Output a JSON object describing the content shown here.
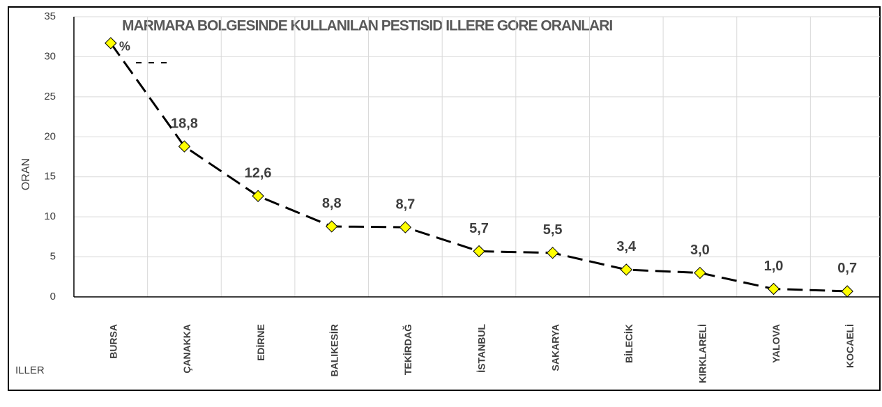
{
  "chart_data": {
    "type": "line",
    "title": "MARMARA BOLGESINDE KULLANILAN PESTISID ILLERE GORE ORANLARI",
    "x_label": "ILLER",
    "y_label": "ORAN",
    "categories": [
      "BURSA",
      "ÇANAKKA",
      "EDİRNE",
      "BALIKESİR",
      "TEKİRDAĞ",
      "İSTANBUL",
      "SAKARYA",
      "BİLECİK",
      "KIRKLARELİ",
      "YALOVA",
      "KOCAELİ"
    ],
    "series": [
      {
        "name": "ORAN",
        "color": "#000000",
        "marker_color": "#ffff00",
        "values": [
          31.7,
          18.8,
          12.6,
          8.8,
          8.7,
          5.7,
          5.5,
          3.4,
          3.0,
          1.0,
          0.7
        ],
        "value_labels": [
          null,
          "18,8",
          "12,6",
          "8,8",
          "8,7",
          "5,7",
          "5,5",
          "3,4",
          "3,0",
          "1,0",
          "0,7"
        ]
      }
    ],
    "annotation": "%",
    "ylim": [
      0,
      35
    ],
    "yticks": [
      0,
      5,
      10,
      15,
      20,
      25,
      30,
      35
    ],
    "grid": true
  }
}
